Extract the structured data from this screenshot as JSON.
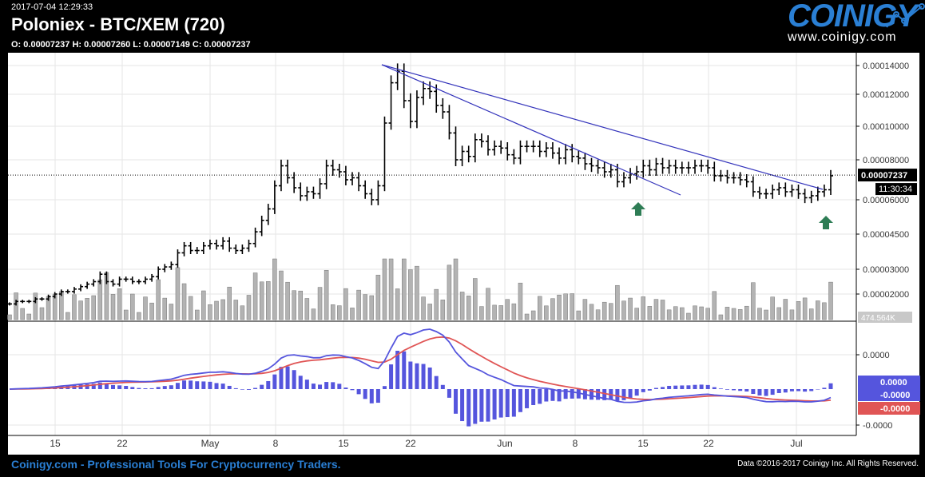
{
  "header": {
    "timestamp": "2017-07-04 12:29:33",
    "title": "Poloniex - BTC/XEM (720)",
    "ohlc": "O: 0.00007237 H: 0.00007260 L: 0.00007149 C: 0.00007237"
  },
  "logo": {
    "name": "COINIGY",
    "url": "www.coinigy.com"
  },
  "footer": {
    "left": "Coinigy.com - Professional Tools For Cryptocurrency Traders.",
    "right": "Data ©2016-2017 Coinigy Inc. All Rights Reserved."
  },
  "colors": {
    "background": "#000000",
    "panel": "#ffffff",
    "candle": "#000000",
    "volume": "#b3b3b3",
    "trendline": "#3333bb",
    "macd_line": "#5555dd",
    "signal_line": "#e05555",
    "histogram": "#5555dd",
    "arrow": "#2e7d55"
  },
  "chart_data": {
    "type": "ohlc",
    "price_ticks": [
      "0.00014000",
      "0.00012000",
      "0.00010000",
      "0.00008000",
      "0.00006000",
      "0.00004500",
      "0.00003000",
      "0.00002000"
    ],
    "macd_ticks": [
      "0.0000",
      "-0.0000"
    ],
    "x_ticks": [
      "15",
      "22",
      "May",
      "8",
      "15",
      "22",
      "Jun",
      "8",
      "15",
      "22",
      "Jul"
    ],
    "current_price": "0.00007237",
    "countdown": "11:30:34",
    "macd_labels": [
      "0.0000",
      "-0.0000",
      "-0.0000"
    ],
    "volume_label": "474.564K",
    "price_series": [
      1.6e-05,
      1.7e-05,
      1.7e-05,
      1.7e-05,
      1.8e-05,
      1.8e-05,
      1.9e-05,
      2e-05,
      2.1e-05,
      2.1e-05,
      2.2e-05,
      2.3e-05,
      2.4e-05,
      2.5e-05,
      2.8e-05,
      2.5e-05,
      2.4e-05,
      2.6e-05,
      2.6e-05,
      2.5e-05,
      2.5e-05,
      2.6e-05,
      2.7e-05,
      3e-05,
      3.1e-05,
      3.2e-05,
      3.7e-05,
      4e-05,
      3.8e-05,
      3.8e-05,
      4e-05,
      4.1e-05,
      4e-05,
      4.2e-05,
      3.9e-05,
      3.8e-05,
      3.9e-05,
      4.1e-05,
      4.6e-05,
      5.1e-05,
      5.6e-05,
      6.7e-05,
      7.7e-05,
      7.1e-05,
      6.6e-05,
      6.2e-05,
      6.4e-05,
      6.3e-05,
      6.8e-05,
      7.7e-05,
      7.5e-05,
      7.4e-05,
      7e-05,
      7.1e-05,
      6.7e-05,
      6.3e-05,
      6e-05,
      6.7e-05,
      0.000102,
      0.000128,
      0.000136,
      0.000116,
      0.000103,
      0.000118,
      0.000124,
      0.000122,
      0.000113,
      0.000109,
      9.6e-05,
      8e-05,
      8.5e-05,
      8.2e-05,
      9.2e-05,
      9.1e-05,
      8.6e-05,
      8.8e-05,
      8.7e-05,
      8.3e-05,
      8.1e-05,
      8.8e-05,
      8.8e-05,
      8.8e-05,
      8.5e-05,
      8.7e-05,
      8.4e-05,
      8.1e-05,
      8.6e-05,
      8.2e-05,
      8.1e-05,
      7.8e-05,
      7.7e-05,
      7.6e-05,
      7.4e-05,
      7.5e-05,
      6.9e-05,
      7.1e-05,
      7.3e-05,
      7.4e-05,
      7.7e-05,
      7.5e-05,
      7.8e-05,
      7.6e-05,
      7.7e-05,
      7.6e-05,
      7.6e-05,
      7.6e-05,
      7.7e-05,
      7.7e-05,
      7.6e-05,
      7.2e-05,
      7.2e-05,
      7.1e-05,
      7.1e-05,
      7e-05,
      6.9e-05,
      6.4e-05,
      6.3e-05,
      6.3e-05,
      6.5e-05,
      6.6e-05,
      6.4e-05,
      6.5e-05,
      6.3e-05,
      6.1e-05,
      6.2e-05,
      6.4e-05,
      6.5e-05,
      7.2e-05
    ],
    "annotations": [
      "trendline",
      "trendline",
      "buy-arrow",
      "buy-arrow"
    ]
  }
}
